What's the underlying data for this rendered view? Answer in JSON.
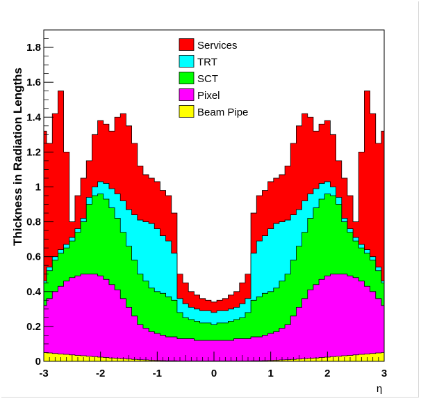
{
  "chart_data": {
    "type": "area",
    "stacked": true,
    "title": "",
    "xlabel": "η",
    "ylabel": "Thickness in Radiation Lengths",
    "xlim": [
      -3,
      3
    ],
    "ylim": [
      0,
      1.9
    ],
    "grid": false,
    "legend_position": "top-center",
    "x_ticks": [
      "-3",
      "-2",
      "-1",
      "0",
      "1",
      "2",
      "3"
    ],
    "y_ticks": [
      "0",
      "0.2",
      "0.4",
      "0.6",
      "0.8",
      "1",
      "1.2",
      "1.4",
      "1.6",
      "1.8"
    ],
    "x_tick_values": [
      -3,
      -2,
      -1,
      0,
      1,
      2,
      3
    ],
    "y_tick_values": [
      0,
      0.2,
      0.4,
      0.6,
      0.8,
      1.0,
      1.2,
      1.4,
      1.6,
      1.8
    ],
    "x": [
      -3.0,
      -2.9,
      -2.8,
      -2.7,
      -2.6,
      -2.5,
      -2.4,
      -2.3,
      -2.2,
      -2.1,
      -2.0,
      -1.9,
      -1.8,
      -1.7,
      -1.6,
      -1.5,
      -1.4,
      -1.3,
      -1.2,
      -1.1,
      -1.0,
      -0.9,
      -0.8,
      -0.7,
      -0.6,
      -0.5,
      -0.4,
      -0.3,
      -0.2,
      -0.1,
      0.0,
      0.1,
      0.2,
      0.3,
      0.4,
      0.5,
      0.6,
      0.7,
      0.8,
      0.9,
      1.0,
      1.1,
      1.2,
      1.3,
      1.4,
      1.5,
      1.6,
      1.7,
      1.8,
      1.9,
      2.0,
      2.1,
      2.2,
      2.3,
      2.4,
      2.5,
      2.6,
      2.7,
      2.8,
      2.9,
      3.0
    ],
    "series": [
      {
        "name": "Beam Pipe",
        "color": "#ffff00",
        "totals": [
          0.05,
          0.048,
          0.045,
          0.042,
          0.04,
          0.037,
          0.034,
          0.032,
          0.029,
          0.027,
          0.024,
          0.022,
          0.019,
          0.017,
          0.015,
          0.013,
          0.011,
          0.009,
          0.008,
          0.006,
          0.005,
          0.004,
          0.003,
          0.003,
          0.002,
          0.002,
          0.002,
          0.002,
          0.002,
          0.002,
          0.002,
          0.002,
          0.002,
          0.002,
          0.002,
          0.002,
          0.002,
          0.003,
          0.003,
          0.004,
          0.005,
          0.006,
          0.008,
          0.009,
          0.011,
          0.013,
          0.015,
          0.017,
          0.019,
          0.022,
          0.024,
          0.027,
          0.029,
          0.032,
          0.034,
          0.037,
          0.04,
          0.042,
          0.045,
          0.048,
          0.05
        ]
      },
      {
        "name": "Pixel",
        "color": "#ff00ff",
        "totals": [
          0.32,
          0.36,
          0.4,
          0.43,
          0.46,
          0.48,
          0.49,
          0.5,
          0.5,
          0.5,
          0.49,
          0.47,
          0.44,
          0.41,
          0.36,
          0.31,
          0.26,
          0.21,
          0.19,
          0.17,
          0.16,
          0.15,
          0.14,
          0.14,
          0.13,
          0.13,
          0.13,
          0.12,
          0.12,
          0.12,
          0.12,
          0.12,
          0.12,
          0.12,
          0.13,
          0.13,
          0.13,
          0.14,
          0.14,
          0.15,
          0.16,
          0.17,
          0.19,
          0.21,
          0.26,
          0.31,
          0.36,
          0.41,
          0.44,
          0.47,
          0.49,
          0.5,
          0.5,
          0.5,
          0.49,
          0.48,
          0.46,
          0.43,
          0.4,
          0.36,
          0.32
        ]
      },
      {
        "name": "SCT",
        "color": "#00ff00",
        "totals": [
          0.45,
          0.52,
          0.58,
          0.62,
          0.65,
          0.69,
          0.74,
          0.8,
          0.9,
          0.95,
          0.96,
          0.93,
          0.88,
          0.82,
          0.74,
          0.66,
          0.58,
          0.5,
          0.46,
          0.42,
          0.4,
          0.39,
          0.37,
          0.35,
          0.28,
          0.25,
          0.24,
          0.23,
          0.22,
          0.22,
          0.21,
          0.22,
          0.22,
          0.23,
          0.24,
          0.25,
          0.28,
          0.35,
          0.37,
          0.39,
          0.4,
          0.42,
          0.46,
          0.5,
          0.58,
          0.66,
          0.74,
          0.82,
          0.88,
          0.93,
          0.96,
          0.95,
          0.9,
          0.8,
          0.74,
          0.69,
          0.65,
          0.62,
          0.58,
          0.52,
          0.45
        ]
      },
      {
        "name": "TRT",
        "color": "#00ffff",
        "totals": [
          0.46,
          0.54,
          0.6,
          0.64,
          0.67,
          0.71,
          0.76,
          0.82,
          0.94,
          1.0,
          1.03,
          1.02,
          0.99,
          0.96,
          0.92,
          0.87,
          0.84,
          0.81,
          0.8,
          0.79,
          0.76,
          0.72,
          0.69,
          0.62,
          0.36,
          0.33,
          0.31,
          0.3,
          0.29,
          0.29,
          0.28,
          0.29,
          0.29,
          0.3,
          0.31,
          0.33,
          0.36,
          0.62,
          0.69,
          0.72,
          0.76,
          0.79,
          0.8,
          0.81,
          0.84,
          0.87,
          0.92,
          0.96,
          0.99,
          1.02,
          1.03,
          1.0,
          0.94,
          0.82,
          0.76,
          0.71,
          0.67,
          0.64,
          0.6,
          0.54,
          0.46
        ]
      },
      {
        "name": "Services",
        "color": "#ff0000",
        "totals": [
          1.32,
          1.25,
          1.42,
          1.55,
          1.2,
          0.8,
          0.95,
          1.05,
          1.15,
          1.3,
          1.38,
          1.36,
          1.32,
          1.4,
          1.42,
          1.35,
          1.25,
          1.12,
          1.07,
          1.05,
          1.03,
          0.98,
          0.95,
          0.85,
          0.5,
          0.45,
          0.4,
          0.38,
          0.36,
          0.35,
          0.34,
          0.35,
          0.36,
          0.38,
          0.4,
          0.45,
          0.5,
          0.85,
          0.95,
          0.98,
          1.03,
          1.05,
          1.07,
          1.12,
          1.25,
          1.35,
          1.42,
          1.4,
          1.32,
          1.36,
          1.38,
          1.3,
          1.15,
          1.05,
          0.95,
          0.8,
          1.2,
          1.55,
          1.42,
          1.25,
          1.32
        ]
      }
    ]
  },
  "legend": {
    "items": [
      {
        "label": "Services",
        "color": "#ff0000"
      },
      {
        "label": "TRT",
        "color": "#00ffff"
      },
      {
        "label": "SCT",
        "color": "#00ff00"
      },
      {
        "label": "Pixel",
        "color": "#ff00ff"
      },
      {
        "label": "Beam Pipe",
        "color": "#ffff00"
      }
    ]
  }
}
